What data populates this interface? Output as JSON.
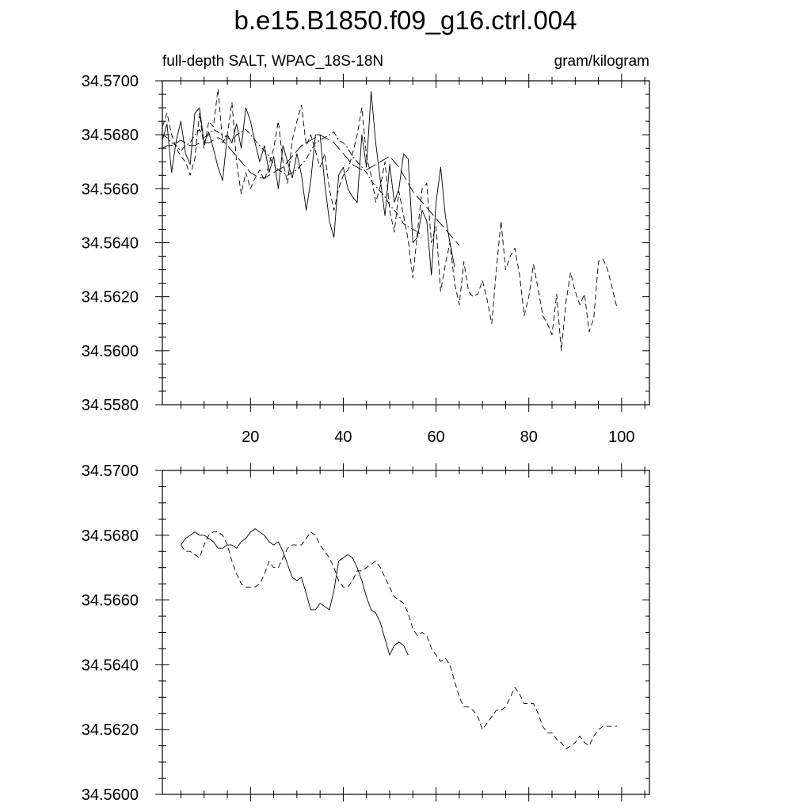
{
  "page": {
    "title": "b.e15.B1850.f09_g16.ctrl.004"
  },
  "chart_data": [
    {
      "type": "line",
      "subtitle_left": "full-depth SALT, WPAC_18S-18N",
      "subtitle_right": "gram/kilogram",
      "xlim": [
        1,
        106
      ],
      "ylim": [
        34.558,
        34.57
      ],
      "x_ticks": [
        20,
        40,
        60,
        80,
        100
      ],
      "y_ticks": [
        "34.5580",
        "34.5600",
        "34.5620",
        "34.5640",
        "34.5660",
        "34.5680",
        "34.5700"
      ],
      "grid": false,
      "series": [
        {
          "style": "solid",
          "x_start": 1,
          "values": [
            34.5678,
            34.5684,
            34.5666,
            34.5678,
            34.5685,
            34.5673,
            34.5669,
            34.5688,
            34.569,
            34.5677,
            34.5681,
            34.5675,
            34.5668,
            34.5663,
            34.568,
            34.5677,
            34.5684,
            34.5675,
            34.569,
            34.5685,
            34.5677,
            34.567,
            34.5676,
            34.5666,
            34.5672,
            34.566,
            34.5676,
            34.567,
            34.5664,
            34.5673,
            34.5665,
            34.5652,
            34.5663,
            34.568,
            34.568,
            34.5662,
            34.5648,
            34.5642,
            34.5665,
            34.5668,
            34.566,
            34.5657,
            34.5655,
            34.568,
            34.5668,
            34.5696,
            34.5677,
            34.5663,
            34.565,
            34.5669,
            34.5655,
            34.566,
            34.5673,
            34.5671,
            34.564,
            34.5642,
            34.5652,
            34.5648,
            34.5628,
            34.5655,
            34.5668,
            34.565,
            34.564,
            34.5631
          ]
        },
        {
          "style": "dashed",
          "x_start": 1,
          "values": [
            34.5683,
            34.5688,
            34.568,
            34.5675,
            34.5672,
            34.567,
            34.5665,
            34.5671,
            34.5688,
            34.5675,
            34.5685,
            34.5683,
            34.5697,
            34.5677,
            34.568,
            34.5692,
            34.567,
            34.5658,
            34.5666,
            34.566,
            34.5664,
            34.5667,
            34.5663,
            34.5669,
            34.5675,
            34.5685,
            34.567,
            34.5662,
            34.5678,
            34.5685,
            34.5691,
            34.5676,
            34.568,
            34.5674,
            34.5668,
            34.5673,
            34.566,
            34.5652,
            34.566,
            34.5665,
            34.5667,
            34.5673,
            34.568,
            34.569,
            34.5672,
            34.5665,
            34.5655,
            34.5661,
            34.567,
            34.5652,
            34.5644,
            34.5659,
            34.565,
            34.5641,
            34.5627,
            34.5644,
            34.566,
            34.5662,
            34.564,
            34.5646,
            34.5622,
            34.5632,
            34.564,
            34.5625,
            34.5617,
            34.5633,
            34.5622,
            34.562,
            34.5621,
            34.5626,
            34.5619,
            34.561,
            34.563,
            34.5648,
            34.563,
            34.5635,
            34.5638,
            34.5628,
            34.5613,
            34.562,
            34.5632,
            34.5623,
            34.5613,
            34.561,
            34.5606,
            34.5621,
            34.56,
            34.5618,
            34.5629,
            34.5622,
            34.5617,
            34.5621,
            34.5607,
            34.5612,
            34.5633,
            34.5634,
            34.563,
            34.5623,
            34.5616
          ]
        },
        {
          "style": "dash-dot",
          "x_start": 1,
          "values": [
            34.568,
            34.5679,
            34.5677,
            34.5676,
            34.5674,
            34.5676,
            34.5677,
            34.568,
            34.5682,
            34.5679,
            34.568,
            34.5682,
            34.5681,
            34.568,
            34.5679,
            34.5678,
            34.568,
            34.5681,
            34.5682,
            34.568,
            34.5678,
            34.5676,
            34.5674,
            34.5672,
            34.5669,
            34.5667,
            34.5666,
            34.5665,
            34.5666,
            34.5667,
            34.5669,
            34.5671,
            34.5674,
            34.5677,
            34.5678,
            34.5679,
            34.568,
            34.5681,
            34.5678,
            34.5677,
            34.5675,
            34.5672,
            34.567,
            34.5668,
            34.5666,
            34.5663,
            34.5661,
            34.5659,
            34.5657,
            34.5654,
            34.5652,
            34.565,
            34.5647,
            34.5646,
            34.5645,
            34.5644,
            34.5643
          ]
        },
        {
          "style": "long-dash",
          "x_start": 1,
          "values": [
            34.5675,
            34.5676,
            34.5676,
            34.5677,
            34.5678,
            34.5677,
            34.5676,
            34.5676,
            34.5677,
            34.5677,
            34.5677,
            34.5678,
            34.5679,
            34.5678,
            34.5676,
            34.5674,
            34.5672,
            34.567,
            34.5668,
            34.5666,
            34.5665,
            34.5664,
            34.5664,
            34.5665,
            34.5666,
            34.5667,
            34.5668,
            34.567,
            34.5672,
            34.5674,
            34.5676,
            34.5677,
            34.5678,
            34.5679,
            34.568,
            34.5679,
            34.5678,
            34.5677,
            34.5675,
            34.5673,
            34.5671,
            34.5669,
            34.5668,
            34.5667,
            34.5667,
            34.5668,
            34.5669,
            34.567,
            34.5671,
            34.5672,
            34.567,
            34.5668,
            34.5665,
            34.5662,
            34.5659,
            34.5657,
            34.5655,
            34.5653,
            34.5651,
            34.5649,
            34.5647,
            34.5645,
            34.5643,
            34.5641,
            34.5639
          ]
        }
      ]
    },
    {
      "type": "line",
      "xlim": [
        1,
        106
      ],
      "ylim": [
        34.56,
        34.57
      ],
      "x_ticks": [
        20,
        40,
        60,
        80,
        100
      ],
      "y_ticks": [
        "34.5600",
        "34.5620",
        "34.5640",
        "34.5660",
        "34.5680",
        "34.5700"
      ],
      "grid": false,
      "series": [
        {
          "style": "solid",
          "x_start": 5,
          "values": [
            34.5677,
            34.5679,
            34.568,
            34.5681,
            34.568,
            34.568,
            34.5679,
            34.5678,
            34.5676,
            34.5676,
            34.5677,
            34.5677,
            34.5676,
            34.5678,
            34.5679,
            34.5681,
            34.5682,
            34.5681,
            34.568,
            34.5678,
            34.5677,
            34.5678,
            34.5675,
            34.5671,
            34.5667,
            34.5666,
            34.5667,
            34.5662,
            34.5657,
            34.5657,
            34.5659,
            34.5658,
            34.5657,
            34.5663,
            34.5672,
            34.5673,
            34.5674,
            34.5673,
            34.567,
            34.5666,
            34.5661,
            34.5657,
            34.5656,
            34.5653,
            34.5648,
            34.5643,
            34.5646,
            34.5647,
            34.5646,
            34.5643
          ]
        },
        {
          "style": "dashed",
          "x_start": 5,
          "values": [
            34.5677,
            34.5675,
            34.5675,
            34.5674,
            34.5673,
            34.5677,
            34.568,
            34.5681,
            34.5681,
            34.568,
            34.5677,
            34.5672,
            34.5668,
            34.5665,
            34.5664,
            34.5664,
            34.5664,
            34.5665,
            34.5668,
            34.5672,
            34.567,
            34.567,
            34.5673,
            34.5676,
            34.5677,
            34.5677,
            34.5677,
            34.5679,
            34.5681,
            34.568,
            34.5677,
            34.5675,
            34.5673,
            34.567,
            34.5666,
            34.5664,
            34.5664,
            34.5666,
            34.5669,
            34.5669,
            34.567,
            34.5671,
            34.5672,
            34.567,
            34.5667,
            34.5664,
            34.5661,
            34.566,
            34.5659,
            34.5656,
            34.5651,
            34.5649,
            34.565,
            34.5649,
            34.5645,
            34.5643,
            34.5641,
            34.5642,
            34.564,
            34.5635,
            34.563,
            34.5627,
            34.5627,
            34.5626,
            34.5624,
            34.562,
            34.5622,
            34.5624,
            34.5626,
            34.5626,
            34.5627,
            34.563,
            34.5633,
            34.5631,
            34.5628,
            34.5628,
            34.5628,
            34.5625,
            34.5621,
            34.5619,
            34.5619,
            34.5617,
            34.5616,
            34.5614,
            34.5615,
            34.5616,
            34.5618,
            34.5616,
            34.5615,
            34.5618,
            34.562,
            34.5621,
            34.5621,
            34.5621,
            34.5621
          ]
        }
      ]
    }
  ]
}
